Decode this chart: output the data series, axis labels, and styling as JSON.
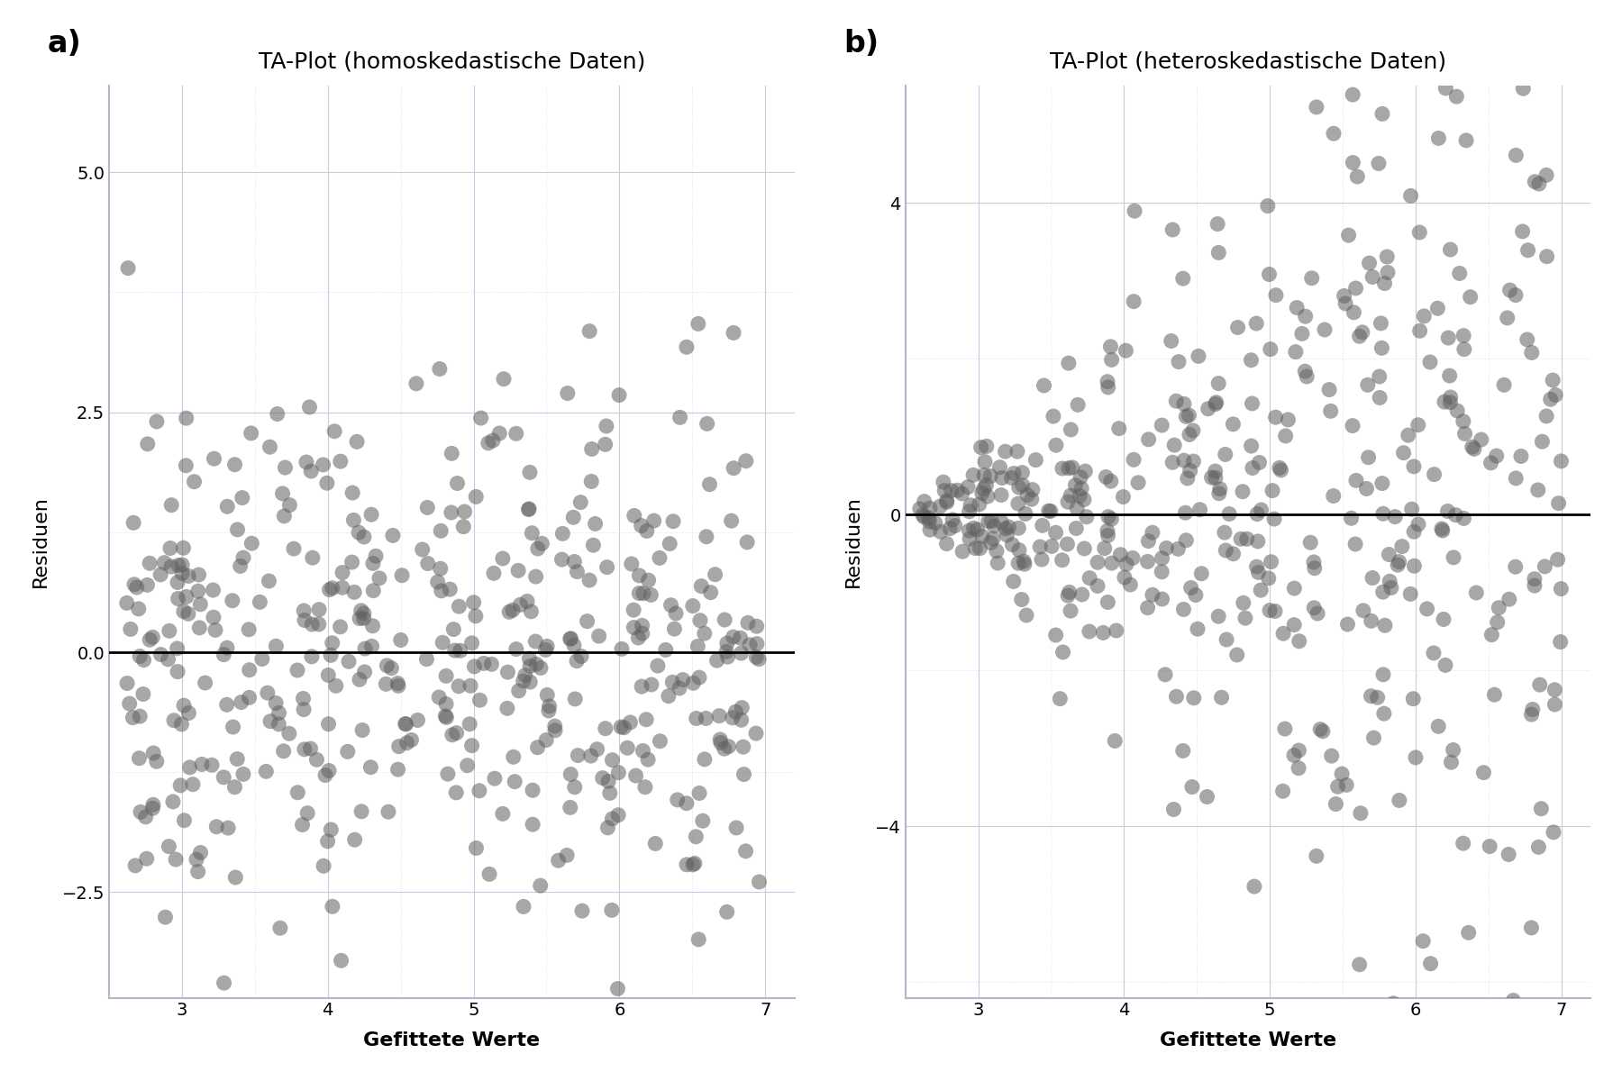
{
  "title_a": "TA-Plot (homoskedastische Daten)",
  "title_b": "TA-Plot (heteroskedastische Daten)",
  "label_a": "a)",
  "label_b": "b)",
  "xlabel": "Gefittete Werte",
  "ylabel": "Residuen",
  "xlim": [
    2.5,
    7.2
  ],
  "ylim_a": [
    -3.6,
    5.9
  ],
  "ylim_b": [
    -6.2,
    5.5
  ],
  "xticks": [
    3,
    4,
    5,
    6,
    7
  ],
  "yticks_a": [
    -2.5,
    0.0,
    2.5,
    5.0
  ],
  "yticks_b": [
    -4,
    0,
    4
  ],
  "bg_color": "#ffffff",
  "spine_color": "#b0b8c8",
  "dot_color": "#606060",
  "dot_alpha": 0.55,
  "dot_size": 150,
  "grid_color": "#c8ccd8",
  "grid_minor_color": "#d8dce8",
  "seed_a": 42,
  "seed_b": 99,
  "n_points": 450
}
